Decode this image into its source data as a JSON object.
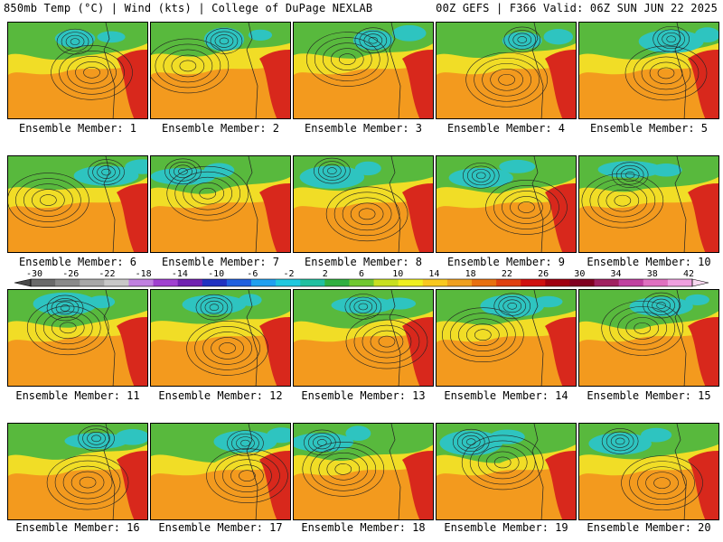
{
  "header": {
    "left_title": "850mb Temp (°C) | Wind (kts) | College of DuPage NEXLAB",
    "right_title": "00Z GEFS | F366 Valid: 06Z SUN JUN 22 2025"
  },
  "members": [
    {
      "label": "Ensemble Member: 1"
    },
    {
      "label": "Ensemble Member: 2"
    },
    {
      "label": "Ensemble Member: 3"
    },
    {
      "label": "Ensemble Member: 4"
    },
    {
      "label": "Ensemble Member: 5"
    },
    {
      "label": "Ensemble Member: 6"
    },
    {
      "label": "Ensemble Member: 7"
    },
    {
      "label": "Ensemble Member: 8"
    },
    {
      "label": "Ensemble Member: 9"
    },
    {
      "label": "Ensemble Member: 10"
    },
    {
      "label": "Ensemble Member: 11"
    },
    {
      "label": "Ensemble Member: 12"
    },
    {
      "label": "Ensemble Member: 13"
    },
    {
      "label": "Ensemble Member: 14"
    },
    {
      "label": "Ensemble Member: 15"
    },
    {
      "label": "Ensemble Member: 16"
    },
    {
      "label": "Ensemble Member: 17"
    },
    {
      "label": "Ensemble Member: 18"
    },
    {
      "label": "Ensemble Member: 19"
    },
    {
      "label": "Ensemble Member: 20"
    }
  ],
  "colorbar": {
    "ticks": [
      "-30",
      "-26",
      "-22",
      "-18",
      "-14",
      "-10",
      "-6",
      "-2",
      "2",
      "6",
      "10",
      "14",
      "18",
      "22",
      "26",
      "30",
      "34",
      "38",
      "42"
    ],
    "colors": [
      "#6a6a6a",
      "#8a8a8a",
      "#a8a8a8",
      "#c8c8c8",
      "#c080e0",
      "#a040d0",
      "#7020b0",
      "#2030c0",
      "#2060e0",
      "#20a0f0",
      "#20c8e0",
      "#20c0a0",
      "#30b040",
      "#70c830",
      "#c8e020",
      "#f0f020",
      "#f8c820",
      "#f0a020",
      "#e87010",
      "#e04010",
      "#d01010",
      "#a00010",
      "#800020",
      "#a02060",
      "#c040a0",
      "#e070c0",
      "#f0a0e0"
    ]
  },
  "map_colors": {
    "warm": "#f39a1e",
    "yellow": "#f1dd26",
    "green": "#58b93d",
    "teal": "#2ec4c0",
    "red": "#d8281c",
    "contour": "#222222"
  }
}
